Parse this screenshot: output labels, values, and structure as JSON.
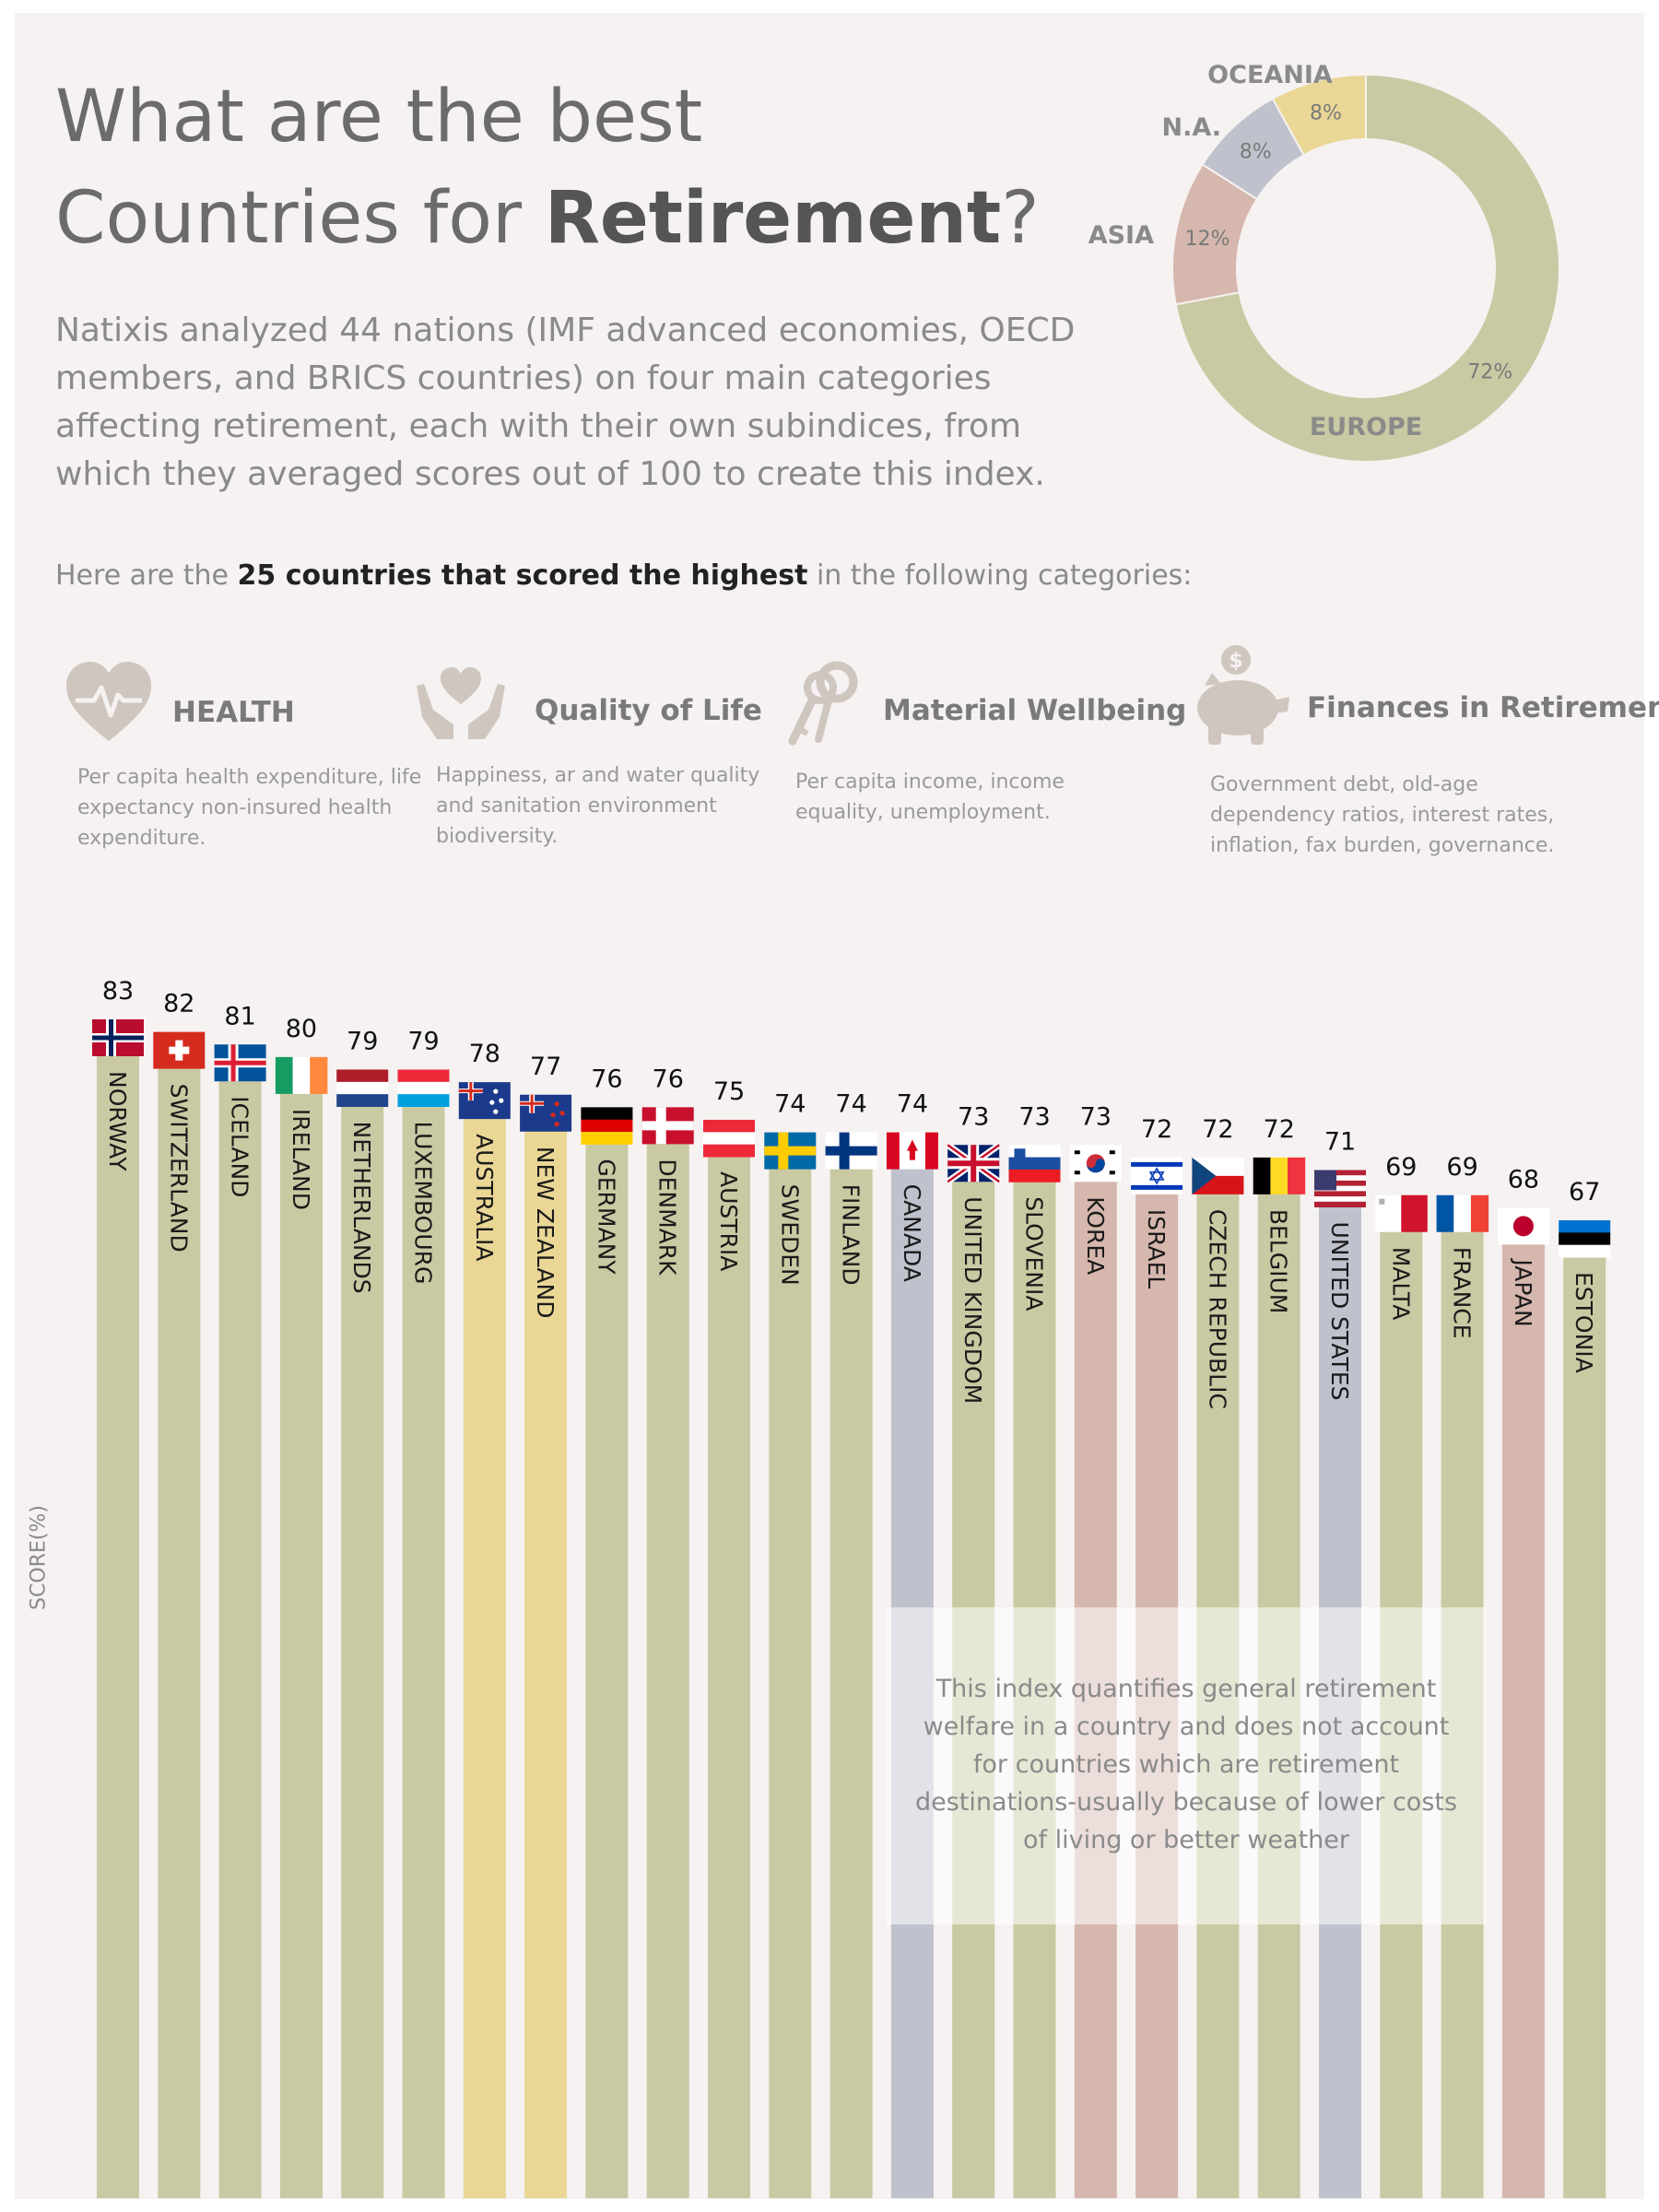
{
  "header": {
    "title_line1": "What are the best",
    "title_line2_pre": "Countries for ",
    "title_line2_bold": "Retirement",
    "title_line2_post": "?",
    "intro": "Natixis analyzed 44 nations (IMF advanced economies, OECD members, and BRICS countries) on four main categories affecting retirement, each with their own subindices, from which they averaged scores out of 100 to create this index.",
    "subhead_pre": "Here are the ",
    "subhead_bold": "25 countries that scored the highest",
    "subhead_post": " in the following categories:"
  },
  "categories": [
    {
      "title": "HEALTH",
      "icon": "heart-pulse-icon",
      "desc": "Per capita health expenditure, life expectancy non-insured health expenditure."
    },
    {
      "title": "Quality of Life",
      "icon": "hands-heart-icon",
      "desc": "Happiness, ar and water quality and sanitation environment biodiversity."
    },
    {
      "title": "Material Wellbeing",
      "icon": "keys-icon",
      "desc": "Per capita income, income equality, unemployment."
    },
    {
      "title": "Finances in Retirement",
      "icon": "piggy-bank-icon",
      "desc": "Government debt, old-age dependency ratios, interest rates, inflation, fax burden, governance."
    }
  ],
  "note": "This index quantifies general retirement welfare in a country and does not account for countries which are retirement destinations-usually because of lower costs of living or better weather",
  "colors": {
    "europe": "#c9c9a3",
    "asia": "#d6b7ad",
    "na": "#bfc2cc",
    "oceania": "#ead796",
    "background": "#f5f2f1",
    "text": "#8a8a8a"
  },
  "chart_data": [
    {
      "type": "pie",
      "donut": true,
      "slices": [
        {
          "label": "EUROPE",
          "value": 72,
          "value_label": "72%",
          "color": "#c9c9a3"
        },
        {
          "label": "ASIA",
          "value": 12,
          "value_label": "12%",
          "color": "#d6b7ad"
        },
        {
          "label": "N.A.",
          "value": 8,
          "value_label": "8%",
          "color": "#bfc2cc"
        },
        {
          "label": "OCEANIA",
          "value": 8,
          "value_label": "8%",
          "color": "#ead796"
        }
      ]
    },
    {
      "type": "bar",
      "orientation": "vertical",
      "ylabel": "SCORE(%)",
      "grid": false,
      "region_colors": {
        "Europe": "#c9c9a3",
        "Asia": "#d6b7ad",
        "North America": "#bfc2cc",
        "Oceania": "#ead796"
      },
      "categories": [
        "NORWAY",
        "SWITZERLAND",
        "ICELAND",
        "IRELAND",
        "NETHERLANDS",
        "LUXEMBOURG",
        "AUSTRALIA",
        "NEW ZEALAND",
        "GERMANY",
        "DENMARK",
        "AUSTRIA",
        "SWEDEN",
        "FINLAND",
        "CANADA",
        "UNITED KINGDOM",
        "SLOVENIA",
        "KOREA",
        "ISRAEL",
        "CZECH REPUBLIC",
        "BELGIUM",
        "UNITED STATES",
        "MALTA",
        "FRANCE",
        "JAPAN",
        "ESTONIA"
      ],
      "values": [
        83,
        82,
        81,
        80,
        79,
        79,
        78,
        77,
        76,
        76,
        75,
        74,
        74,
        74,
        73,
        73,
        73,
        72,
        72,
        72,
        71,
        69,
        69,
        68,
        67
      ],
      "regions": [
        "Europe",
        "Europe",
        "Europe",
        "Europe",
        "Europe",
        "Europe",
        "Oceania",
        "Oceania",
        "Europe",
        "Europe",
        "Europe",
        "Europe",
        "Europe",
        "North America",
        "Europe",
        "Europe",
        "Asia",
        "Asia",
        "Europe",
        "Europe",
        "North America",
        "Europe",
        "Europe",
        "Asia",
        "Europe"
      ],
      "flags": [
        "norway-flag",
        "switzerland-flag",
        "iceland-flag",
        "ireland-flag",
        "netherlands-flag",
        "luxembourg-flag",
        "australia-flag",
        "new-zealand-flag",
        "germany-flag",
        "denmark-flag",
        "austria-flag",
        "sweden-flag",
        "finland-flag",
        "canada-flag",
        "united-kingdom-flag",
        "slovenia-flag",
        "korea-flag",
        "israel-flag",
        "czech-republic-flag",
        "belgium-flag",
        "united-states-flag",
        "malta-flag",
        "france-flag",
        "japan-flag",
        "estonia-flag"
      ]
    }
  ]
}
